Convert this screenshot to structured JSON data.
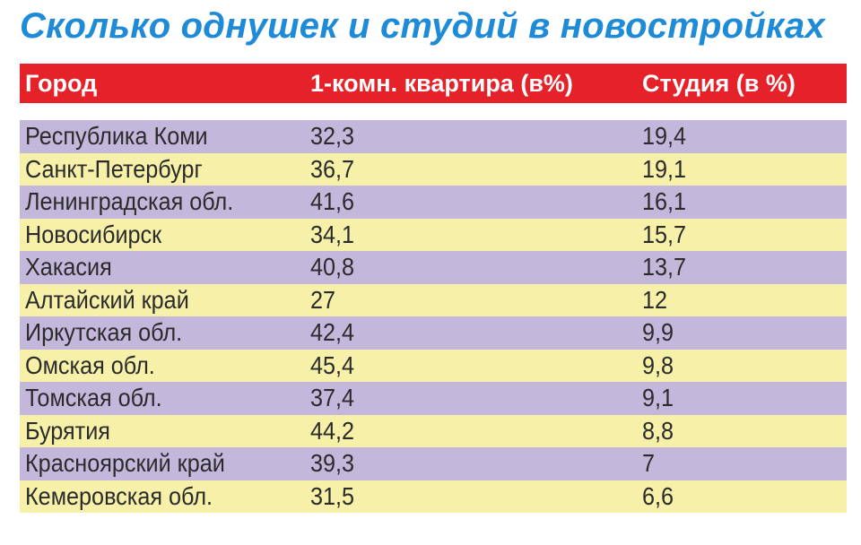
{
  "chart_data": {
    "type": "table",
    "title": "Сколько однушек и студий в новостройках",
    "columns": [
      "Город",
      "1-комн. квартира (в%)",
      "Студия (в %)"
    ],
    "rows": [
      [
        "Республика Коми",
        "32,3",
        "19,4"
      ],
      [
        "Санкт-Петербург",
        "36,7",
        "19,1"
      ],
      [
        "Ленинградская обл.",
        "41,6",
        "16,1"
      ],
      [
        "Новосибирск",
        "34,1",
        "15,7"
      ],
      [
        "Хакасия",
        "40,8",
        "13,7"
      ],
      [
        "Алтайский край",
        "27",
        "12"
      ],
      [
        "Иркутская обл.",
        "42,4",
        "9,9"
      ],
      [
        "Омская обл.",
        "45,4",
        "9,8"
      ],
      [
        "Томская обл.",
        "37,4",
        "9,1"
      ],
      [
        "Бурятия",
        "44,2",
        "8,8"
      ],
      [
        "Красноярский край",
        "39,3",
        "7"
      ],
      [
        "Кемеровская обл.",
        "31,5",
        "6,6"
      ]
    ]
  },
  "colors": {
    "title": "#1e8bd8",
    "header_bg": "#e5222a",
    "header_text": "#ffffff",
    "row_odd": "#c4b7dc",
    "row_even": "#f6f0a8",
    "cell_text": "#2b2b2b"
  }
}
